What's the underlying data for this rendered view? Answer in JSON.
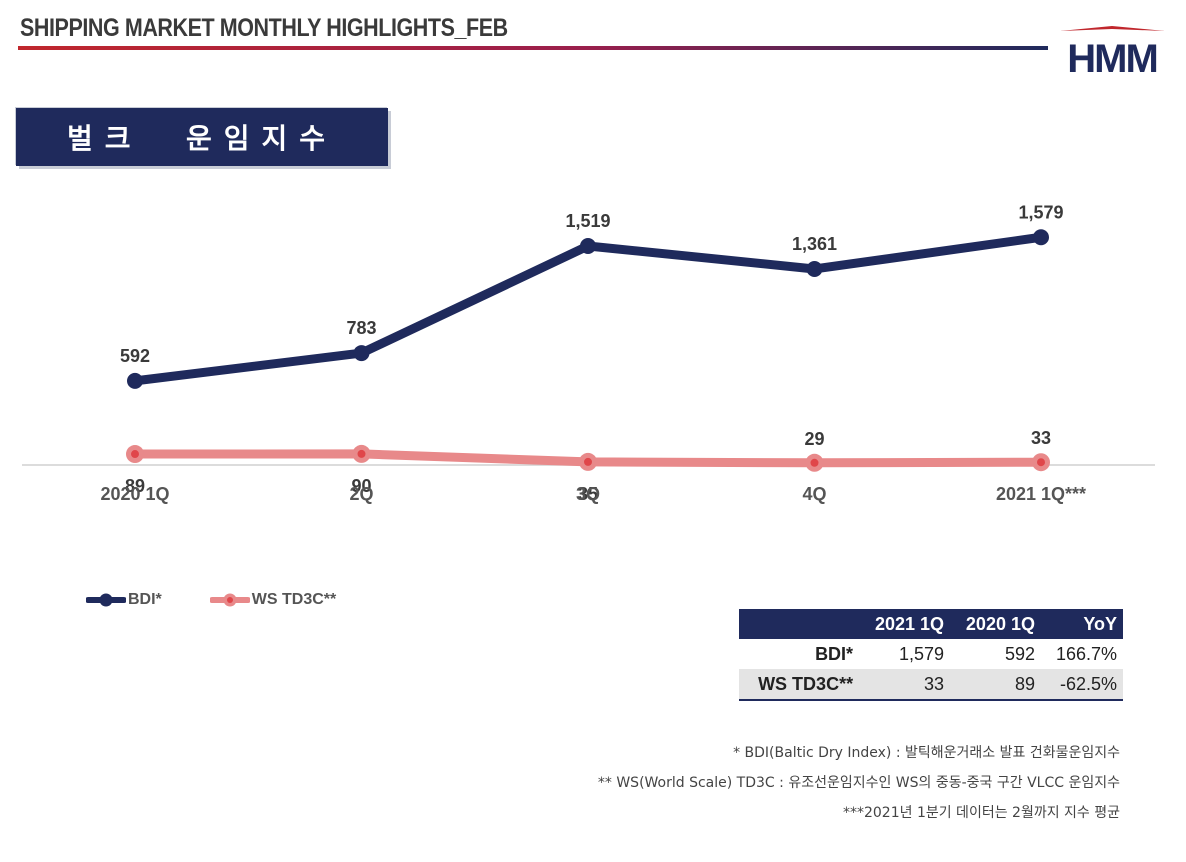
{
  "header": {
    "title": "SHIPPING MARKET MONTHLY HIGHLIGHTS_FEB",
    "logo_text": "HMM"
  },
  "section": {
    "title": "벌크  운임지수"
  },
  "colors": {
    "navy": "#1f2a5c",
    "salmon": "#e8898a",
    "red": "#c0272d"
  },
  "chart_data": {
    "type": "line",
    "categories": [
      "2020 1Q",
      "2Q",
      "3Q",
      "4Q",
      "2021 1Q***"
    ],
    "series": [
      {
        "name": "BDI*",
        "values": [
          592,
          783,
          1519,
          1361,
          1579
        ],
        "labels": [
          "592",
          "783",
          "1,519",
          "1,361",
          "1,579"
        ]
      },
      {
        "name": "WS TD3C**",
        "values": [
          89,
          90,
          35,
          29,
          33
        ],
        "labels": [
          "89",
          "90",
          "35",
          "29",
          "33"
        ]
      }
    ]
  },
  "legend": [
    "BDI*",
    "WS TD3C**"
  ],
  "table": {
    "headers": [
      "",
      "2021 1Q",
      "2020 1Q",
      "YoY"
    ],
    "rows": [
      {
        "name": "BDI*",
        "q2021": "1,579",
        "q2020": "592",
        "yoy": "166.7%"
      },
      {
        "name": "WS TD3C**",
        "q2021": "33",
        "q2020": "89",
        "yoy": "-62.5%"
      }
    ]
  },
  "footnotes": [
    "* BDI(Baltic Dry Index) : 발틱해운거래소 발표 건화물운임지수",
    "** WS(World Scale) TD3C : 유조선운임지수인 WS의 중동-중국 구간 VLCC 운임지수",
    "***2021년 1분기 데이터는 2월까지 지수 평균"
  ]
}
